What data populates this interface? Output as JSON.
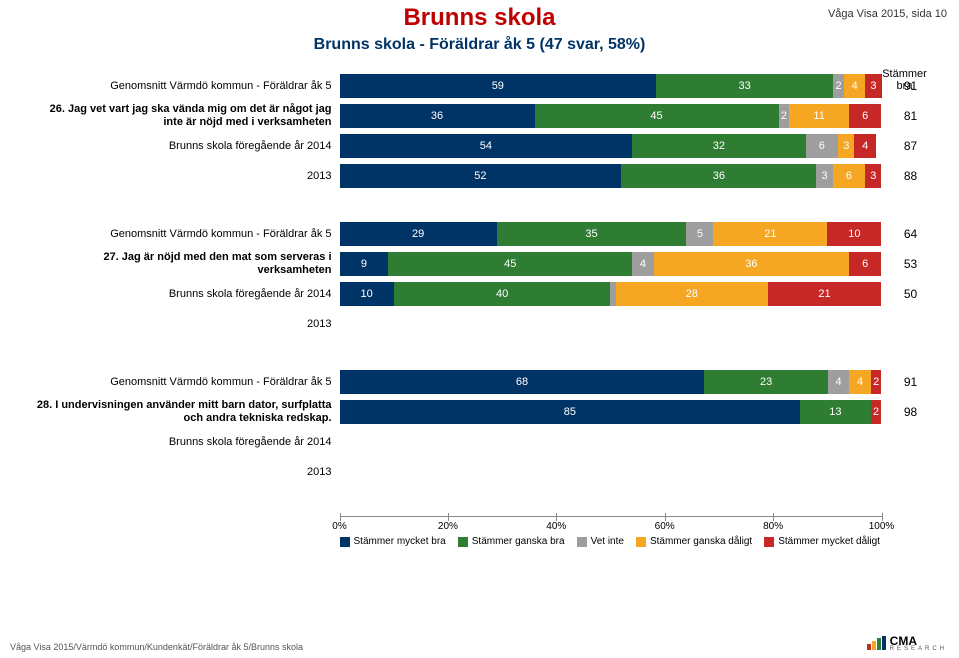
{
  "page_tag": "Våga Visa 2015, sida 10",
  "title": "Brunns skola",
  "subtitle": "Brunns skola - Föräldrar åk 5 (47 svar, 58%)",
  "score_header_l1": "Stämmer",
  "score_header_l2": "bra",
  "colors": {
    "series": [
      "#003366",
      "#2e7d32",
      "#9e9e9e",
      "#f5a623",
      "#c62828"
    ],
    "title": "#bf0000",
    "subtitle": "#003366"
  },
  "series_names": [
    "Stämmer mycket bra",
    "Stämmer ganska bra",
    "Vet inte",
    "Stämmer ganska dåligt",
    "Stämmer mycket dåligt"
  ],
  "axis": {
    "ticks": [
      0,
      20,
      40,
      60,
      80,
      100
    ],
    "labels": [
      "0%",
      "20%",
      "40%",
      "60%",
      "80%",
      "100%"
    ]
  },
  "groups": [
    {
      "rows": [
        {
          "label": "Genomsnitt Värmdö kommun - Föräldrar åk 5",
          "bold": false,
          "segments": [
            59,
            33,
            2,
            4,
            3
          ],
          "score": "91"
        },
        {
          "label": "26. Jag vet vart jag ska vända mig om det är något jag inte är nöjd med i verksamheten",
          "bold": true,
          "segments": [
            36,
            45,
            2,
            11,
            6
          ],
          "score": "81"
        },
        {
          "label": "Brunns skola föregående år 2014",
          "bold": false,
          "segments": [
            54,
            32,
            6,
            3,
            4
          ],
          "score": "87"
        },
        {
          "label": "2013",
          "bold": false,
          "segments": [
            52,
            36,
            3,
            6,
            3
          ],
          "score": "88"
        }
      ]
    },
    {
      "rows": [
        {
          "label": "Genomsnitt Värmdö kommun - Föräldrar åk 5",
          "bold": false,
          "segments": [
            29,
            35,
            5,
            21,
            10
          ],
          "score": "64"
        },
        {
          "label": "27. Jag är nöjd med den mat som serveras i verksamheten",
          "bold": true,
          "segments": [
            9,
            45,
            4,
            36,
            6
          ],
          "score": "53"
        },
        {
          "label": "Brunns skola föregående år 2014",
          "bold": false,
          "segments": [
            10,
            40,
            1,
            28,
            21
          ],
          "score": "50"
        },
        {
          "label": "2013",
          "bold": false,
          "segments": null,
          "score": ""
        }
      ]
    },
    {
      "rows": [
        {
          "label": "Genomsnitt Värmdö kommun - Föräldrar åk 5",
          "bold": false,
          "segments": [
            68,
            23,
            4,
            4,
            2
          ],
          "score": "91"
        },
        {
          "label": "28. I undervisningen använder mitt barn dator, surfplatta och andra tekniska redskap.",
          "bold": true,
          "segments": [
            85,
            13,
            0,
            0,
            2
          ],
          "score": "98"
        },
        {
          "label": "Brunns skola föregående år 2014",
          "bold": false,
          "segments": null,
          "score": ""
        },
        {
          "label": "2013",
          "bold": false,
          "segments": null,
          "score": ""
        }
      ]
    }
  ],
  "footer": "Våga Visa 2015/Värmdö kommun/Kundenkät/Föräldrar åk 5/Brunns skola",
  "logo": {
    "brand": "CMA",
    "sub": "RESEARCH",
    "bar_colors": [
      "#c62828",
      "#f5a623",
      "#2e7d32",
      "#003366"
    ]
  }
}
